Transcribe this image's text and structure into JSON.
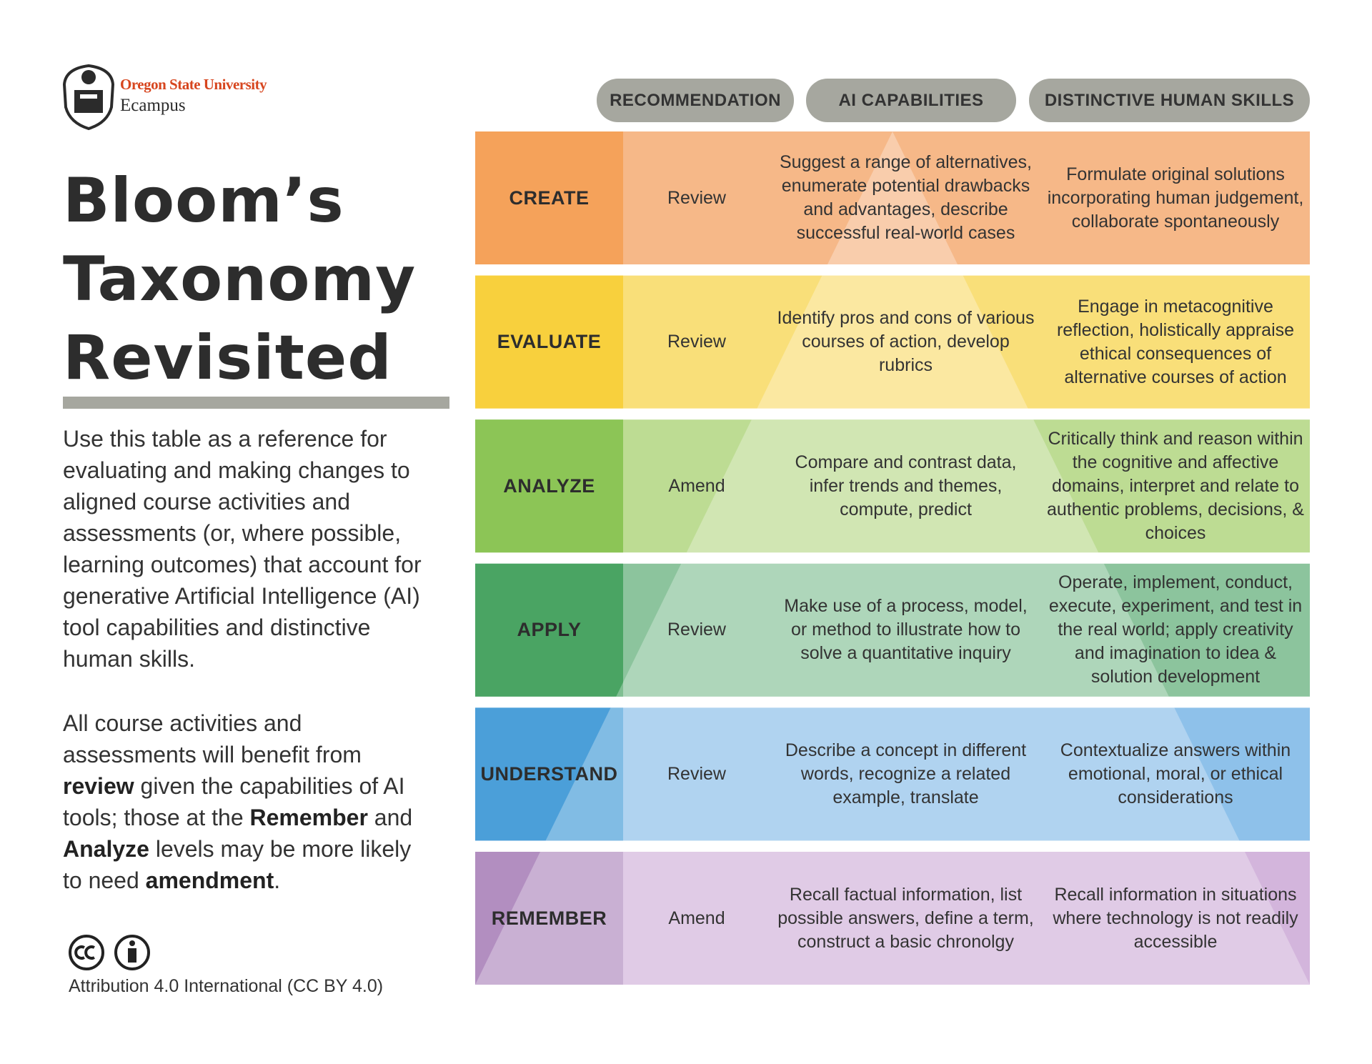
{
  "header": {
    "logo_university": "Oregon State University",
    "logo_unit": "Ecampus"
  },
  "title": "Bloom’s Taxonomy Revisited",
  "intro": "Use this table as a reference for evaluating and making changes to aligned course activities and assessments (or, where possible, learning outcomes) that account for generative Artificial Intelligence (AI) tool capabilities and distinctive human skills.",
  "note": {
    "segments": [
      {
        "text": "All course activities and assessments will benefit from ",
        "bold": false
      },
      {
        "text": "review",
        "bold": true
      },
      {
        "text": " given the capabilities of AI tools; those at the ",
        "bold": false
      },
      {
        "text": "Remember",
        "bold": true
      },
      {
        "text": " and ",
        "bold": false
      },
      {
        "text": "Analyze",
        "bold": true
      },
      {
        "text": " levels may be more likely to need ",
        "bold": false
      },
      {
        "text": "amendment",
        "bold": true
      },
      {
        "text": ".",
        "bold": false
      }
    ]
  },
  "license": "Attribution 4.0 International (CC BY 4.0)",
  "table": {
    "columns": [
      "RECOMMENDATION",
      "AI CAPABILITIES",
      "DISTINCTIVE HUMAN SKILLS"
    ],
    "rows": [
      {
        "level": "CREATE",
        "recommendation": "Review",
        "ai": "Suggest a range of alternatives, enumerate potential drawbacks and advantages, describe successful real-world cases",
        "human": "Formulate original solutions incorporating human judgement, collaborate spontaneously",
        "level_color": "#f5a25a",
        "row_color": "#f6b888"
      },
      {
        "level": "EVALUATE",
        "recommendation": "Review",
        "ai": "Identify pros and cons of various courses of action, develop rubrics",
        "human": "Engage in metacognitive reflection, holistically appraise ethical consequences of alternative courses of action",
        "level_color": "#f8d03d",
        "row_color": "#f9df79"
      },
      {
        "level": "ANALYZE",
        "recommendation": "Amend",
        "ai": "Compare and contrast data, infer trends and themes, compute, predict",
        "human": "Critically think and reason within the cognitive and affective domains, interpret and relate to authentic problems, decisions, & choices",
        "level_color": "#8cc556",
        "row_color": "#bddc93"
      },
      {
        "level": "APPLY",
        "recommendation": "Review",
        "ai": "Make use of a process, model, or method to illustrate how to solve a quantitative inquiry",
        "human": "Operate, implement, conduct, execute, experiment, and test in the real world; apply creativity and imagination to idea & solution development",
        "level_color": "#4aa463",
        "row_color": "#8cc49d"
      },
      {
        "level": "UNDERSTAND",
        "recommendation": "Review",
        "ai": "Describe a concept in different words, recognize a related example, translate",
        "human": "Contextualize answers within emotional, moral, or ethical considerations",
        "level_color": "#4b9fd9",
        "row_color": "#8ec1ea"
      },
      {
        "level": "REMEMBER",
        "recommendation": "Amend",
        "ai": "Recall factual information, list possible answers, define a term, construct a basic chronolgy",
        "human": "Recall information in situations where technology is not readily accessible",
        "level_color": "#b28ec0",
        "row_color": "#d3b5dc"
      }
    ]
  }
}
